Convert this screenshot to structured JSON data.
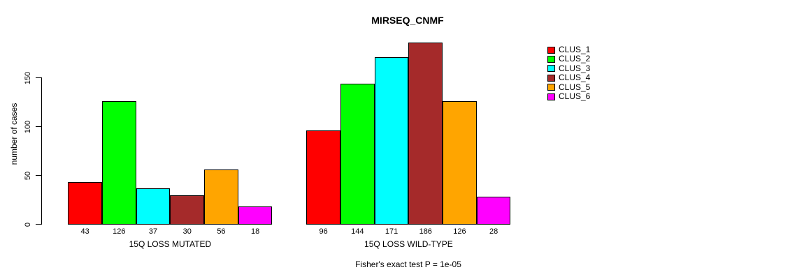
{
  "chart_data": {
    "type": "bar",
    "title": "MIRSEQ_CNMF",
    "ylabel": "number of cases",
    "footer": "Fisher's exact test P = 1e-05",
    "yticks": [
      0,
      50,
      100,
      150
    ],
    "ylim": [
      0,
      186
    ],
    "grid": false,
    "legend_position": "right",
    "series": [
      {
        "name": "CLUS_1",
        "color": "#ff0000"
      },
      {
        "name": "CLUS_2",
        "color": "#00ff00"
      },
      {
        "name": "CLUS_3",
        "color": "#00ffff"
      },
      {
        "name": "CLUS_4",
        "color": "#a52a2a"
      },
      {
        "name": "CLUS_5",
        "color": "#ffa500"
      },
      {
        "name": "CLUS_6",
        "color": "#ff00ff"
      }
    ],
    "groups": [
      {
        "label": "15Q LOSS MUTATED",
        "values": [
          43,
          126,
          37,
          30,
          56,
          18
        ]
      },
      {
        "label": "15Q LOSS WILD-TYPE",
        "values": [
          96,
          144,
          171,
          186,
          126,
          28
        ]
      }
    ]
  }
}
